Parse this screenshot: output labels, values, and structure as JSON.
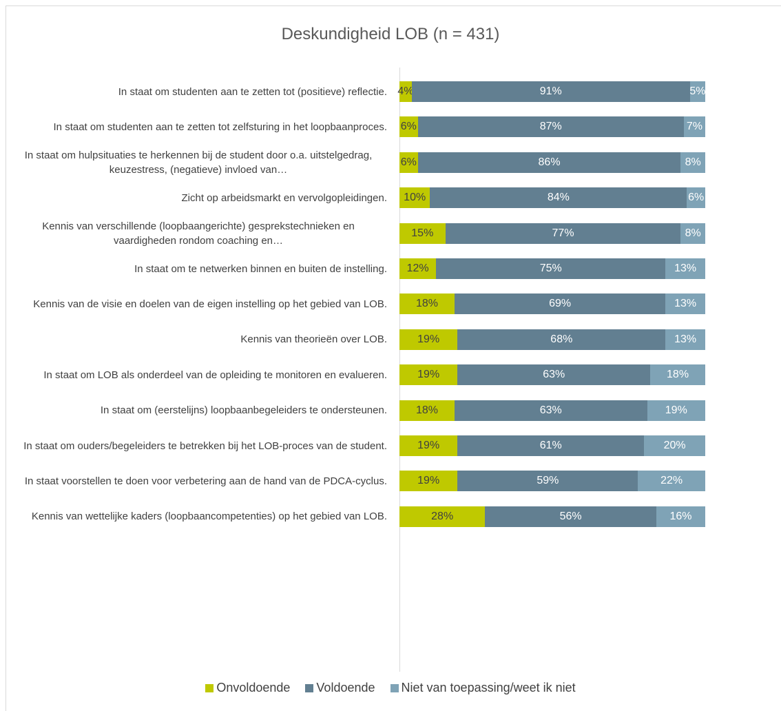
{
  "chart_data": {
    "type": "stacked_barh",
    "title": "Deskundigheid LOB (n = 431)",
    "categories": [
      "In staat om studenten aan te zetten tot (positieve) reflectie.",
      "In staat om studenten aan te zetten tot zelfsturing in het loopbaanproces.",
      "In staat om hulpsituaties te herkennen bij de student door o.a. uitstelgedrag, keuzestress, (negatieve) invloed van…",
      "Zicht op arbeidsmarkt en vervolgopleidingen.",
      "Kennis van verschillende (loopbaangerichte) gesprekstechnieken en vaardigheden rondom coaching en…",
      "In staat om te netwerken binnen en buiten de instelling.",
      "Kennis van de visie en doelen van de eigen instelling op het gebied van LOB.",
      "Kennis van theorieën over LOB.",
      "In staat om LOB als onderdeel van de opleiding te monitoren en evalueren.",
      "In staat om (eerstelijns) loopbaanbegeleiders te ondersteunen.",
      "In staat om ouders/begeleiders te betrekken bij het LOB-proces van de student.",
      "In staat voorstellen te doen voor verbetering aan de hand van de PDCA-cyclus.",
      "Kennis van wettelijke kaders (loopbaancompetenties) op het gebied van LOB."
    ],
    "series": [
      {
        "name": "Onvoldoende",
        "color": "#bfc900",
        "values": [
          4,
          6,
          6,
          10,
          15,
          12,
          18,
          19,
          19,
          18,
          19,
          19,
          28
        ],
        "value_labels": [
          "4%",
          "6%",
          "6%",
          "10%",
          "15%",
          "12%",
          "18%",
          "19%",
          "19%",
          "18%",
          "19%",
          "19%",
          "28%"
        ]
      },
      {
        "name": "Voldoende",
        "color": "#627f91",
        "values": [
          91,
          87,
          86,
          84,
          77,
          75,
          69,
          68,
          63,
          63,
          61,
          59,
          56
        ],
        "value_labels": [
          "91%",
          "87%",
          "86%",
          "84%",
          "77%",
          "75%",
          "69%",
          "68%",
          "63%",
          "63%",
          "61%",
          "59%",
          "56%"
        ]
      },
      {
        "name": "Niet van toepassing/weet ik niet",
        "color": "#7fa3b6",
        "values": [
          5,
          7,
          8,
          6,
          8,
          13,
          13,
          13,
          18,
          19,
          20,
          22,
          16
        ],
        "value_labels": [
          "5%",
          "7%",
          "8%",
          "6%",
          "8%",
          "13%",
          "13%",
          "13%",
          "18%",
          "19%",
          "20%",
          "22%",
          "16%"
        ]
      }
    ],
    "xlim": [
      0,
      100
    ],
    "legend": "bottom"
  }
}
